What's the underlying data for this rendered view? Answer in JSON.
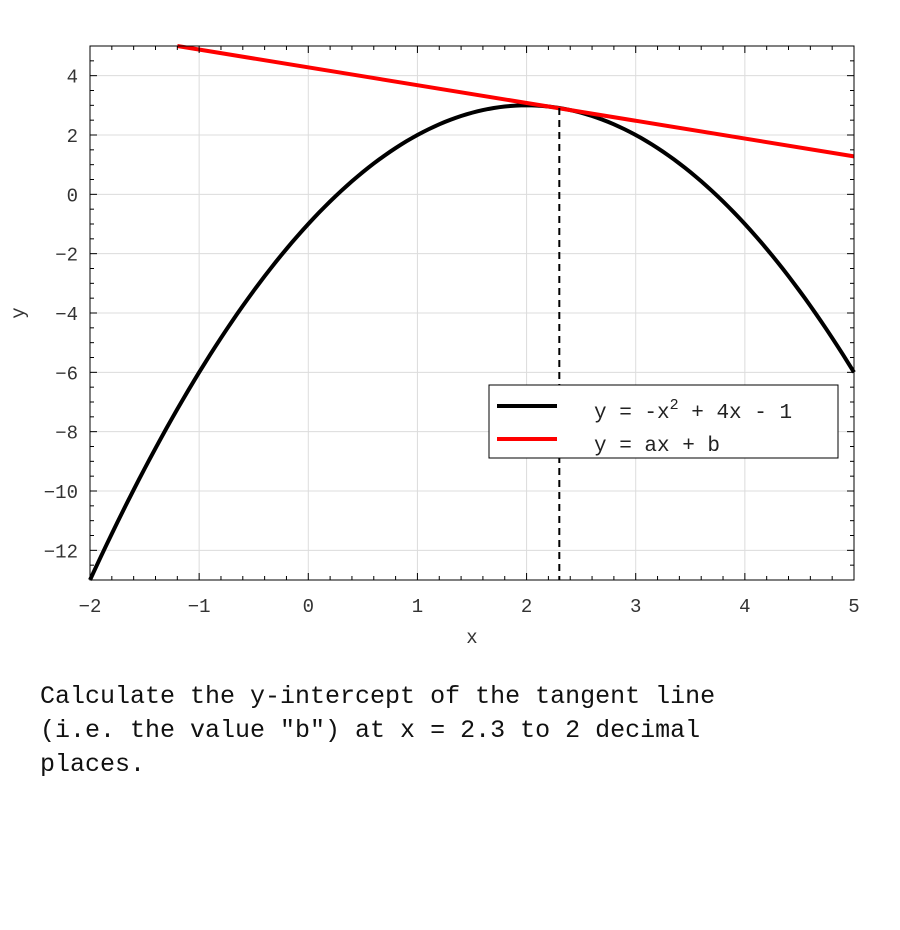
{
  "chart_data": {
    "type": "line",
    "xlabel": "x",
    "ylabel": "y",
    "xlim": [
      -2,
      5
    ],
    "ylim": [
      -13,
      5
    ],
    "x_ticks": [
      -2,
      -1,
      0,
      1,
      2,
      3,
      4,
      5
    ],
    "y_ticks": [
      -12,
      -10,
      -8,
      -6,
      -4,
      -2,
      0,
      2,
      4
    ],
    "grid": true,
    "legend_position": "center-right",
    "series": [
      {
        "name": "y = -x^2 + 4x - 1",
        "label_main": "y = -x",
        "label_sup": "2",
        "label_rest": " + 4x - 1",
        "kind": "curve",
        "color": "#000000",
        "points": [
          [
            -2,
            -13
          ],
          [
            -1.5,
            -9.25
          ],
          [
            -1,
            -6
          ],
          [
            -0.5,
            -3.25
          ],
          [
            0,
            -1
          ],
          [
            0.5,
            0.75
          ],
          [
            1,
            2
          ],
          [
            1.5,
            2.75
          ],
          [
            2,
            3
          ],
          [
            2.5,
            2.75
          ],
          [
            3,
            2
          ],
          [
            3.5,
            0.75
          ],
          [
            4,
            -1
          ],
          [
            4.5,
            -3.25
          ],
          [
            5,
            -6
          ]
        ]
      },
      {
        "name": "y = ax + b",
        "label_main": "y = ax + b",
        "kind": "line",
        "color": "#ff0000",
        "points": [
          [
            -1.2,
            5
          ],
          [
            5,
            1.28
          ]
        ]
      }
    ],
    "marker_x": 2.3
  },
  "question": "Calculate the y-intercept of the tangent line\n(i.e. the value \"b\") at x = 2.3 to 2 decimal\nplaces."
}
